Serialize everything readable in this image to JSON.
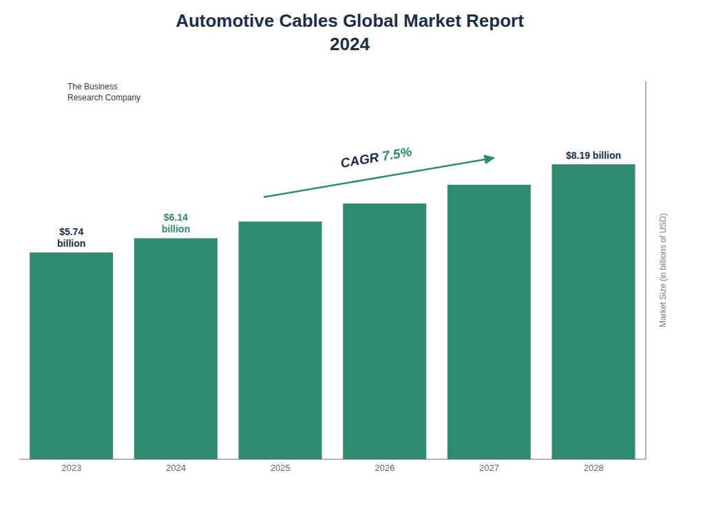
{
  "chart_data": {
    "type": "bar",
    "title": "Automotive Cables Global Market Report\n2024",
    "categories": [
      "2023",
      "2024",
      "2025",
      "2026",
      "2027",
      "2028"
    ],
    "values": [
      5.74,
      6.14,
      6.6,
      7.1,
      7.62,
      8.19
    ],
    "color": "#2e8b72",
    "ylabel": "Market Size (in billions of USD)",
    "ylim": [
      0,
      10.5
    ],
    "yticks": [],
    "tick_labels": "x",
    "grid": false,
    "annotations": [
      {
        "text": "$5.74\nbillion",
        "x": "2023",
        "color": "#1a2e4a"
      },
      {
        "text": "$6.14\nbillion",
        "x": "2024",
        "color": "#2e8b72"
      },
      {
        "text": "$8.19 billion",
        "x": "2028",
        "color": "#1a2e4a"
      },
      {
        "parts": [
          {
            "text": "CAGR ",
            "color": "#1a2e4a"
          },
          {
            "text": "7.5%",
            "color": "#2e8b72"
          }
        ],
        "arrow": {
          "from": "2024",
          "to": "2027",
          "color": "#2e8b72"
        }
      },
      {
        "text": "The Business\nResearch Company",
        "color": "#3a3a3a"
      }
    ]
  }
}
